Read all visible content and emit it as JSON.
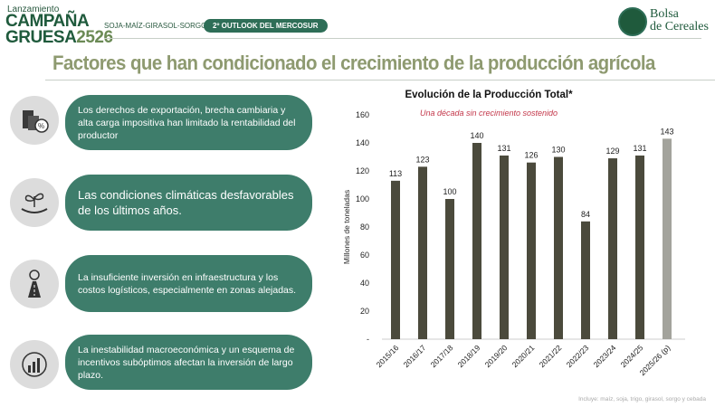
{
  "header": {
    "brand_top": "Lanzamiento",
    "brand_line1": "CAMPAÑA",
    "brand_line2": "GRUESA",
    "brand_year": "2526",
    "crops": "SOJA-MAÍZ-GIRASOL-SORGO",
    "outlook": "2º OUTLOOK DEL MERCOSUR",
    "logo_text_1": "Bolsa",
    "logo_text_2": "de Cereales"
  },
  "title": "Factores que han condicionado el crecimiento de la producción agrícola",
  "factors": [
    {
      "icon": "coins-percent-icon",
      "text": "Los derechos de exportación, brecha cambiaria y alta carga impositiva han limitado la rentabilidad del productor"
    },
    {
      "icon": "sprout-hand-icon",
      "text": "Las condiciones climáticas desfavorables de los últimos años."
    },
    {
      "icon": "road-pin-icon",
      "text": "La insuficiente inversión en infraestructura y los costos logísticos, especialmente en zonas alejadas."
    },
    {
      "icon": "growth-chart-icon",
      "text": "La inestabilidad macroeconómica y un esquema de incentivos subóptimos afectan la inversión de largo plazo."
    }
  ],
  "chart_data": {
    "type": "bar",
    "title": "Evolución de la Producción Total*",
    "subtitle": "Una década sin crecimiento sostenido",
    "ylabel": "Millones de toneladas",
    "xlabel": "",
    "ylim": [
      0,
      160
    ],
    "yticks": [
      "-",
      "20",
      "40",
      "60",
      "80",
      "100",
      "120",
      "140",
      "160"
    ],
    "categories": [
      "2015/16",
      "2016/17",
      "2017/18",
      "2018/19",
      "2019/20",
      "2020/21",
      "2021/22",
      "2022/23",
      "2023/24",
      "2024/25",
      "2025/26 (p)"
    ],
    "values": [
      113,
      123,
      100,
      140,
      131,
      126,
      130,
      84,
      129,
      131,
      143
    ],
    "colors": {
      "bar": "#4b4a3c",
      "projected": "#a3a39c",
      "subtitle": "#c3374a"
    },
    "note": "Incluye: maíz, soja, trigo, girasol, sorgo y cebada"
  }
}
